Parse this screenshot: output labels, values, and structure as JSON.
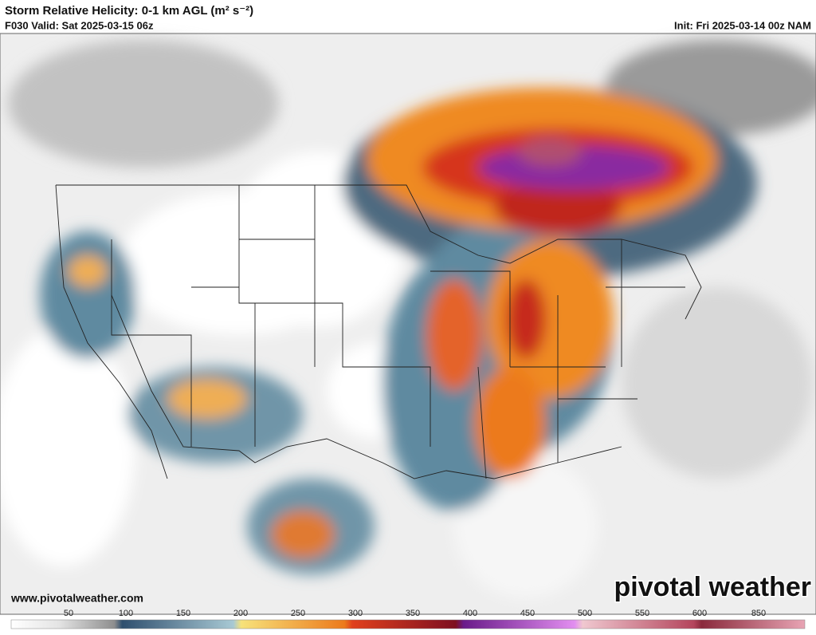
{
  "header": {
    "title": "Storm Relative Helicity: 0-1 km AGL (m² s⁻²)",
    "valid": "F030 Valid: Sat 2025-03-15 06z",
    "init": "Init: Fri 2025-03-14 00z NAM"
  },
  "map": {
    "credit": "www.pivotalweather.com",
    "watermark": "pivotal weather"
  },
  "colorbar": {
    "labels": [
      50,
      100,
      150,
      200,
      250,
      300,
      350,
      400,
      450,
      500,
      550,
      600,
      850
    ]
  }
}
